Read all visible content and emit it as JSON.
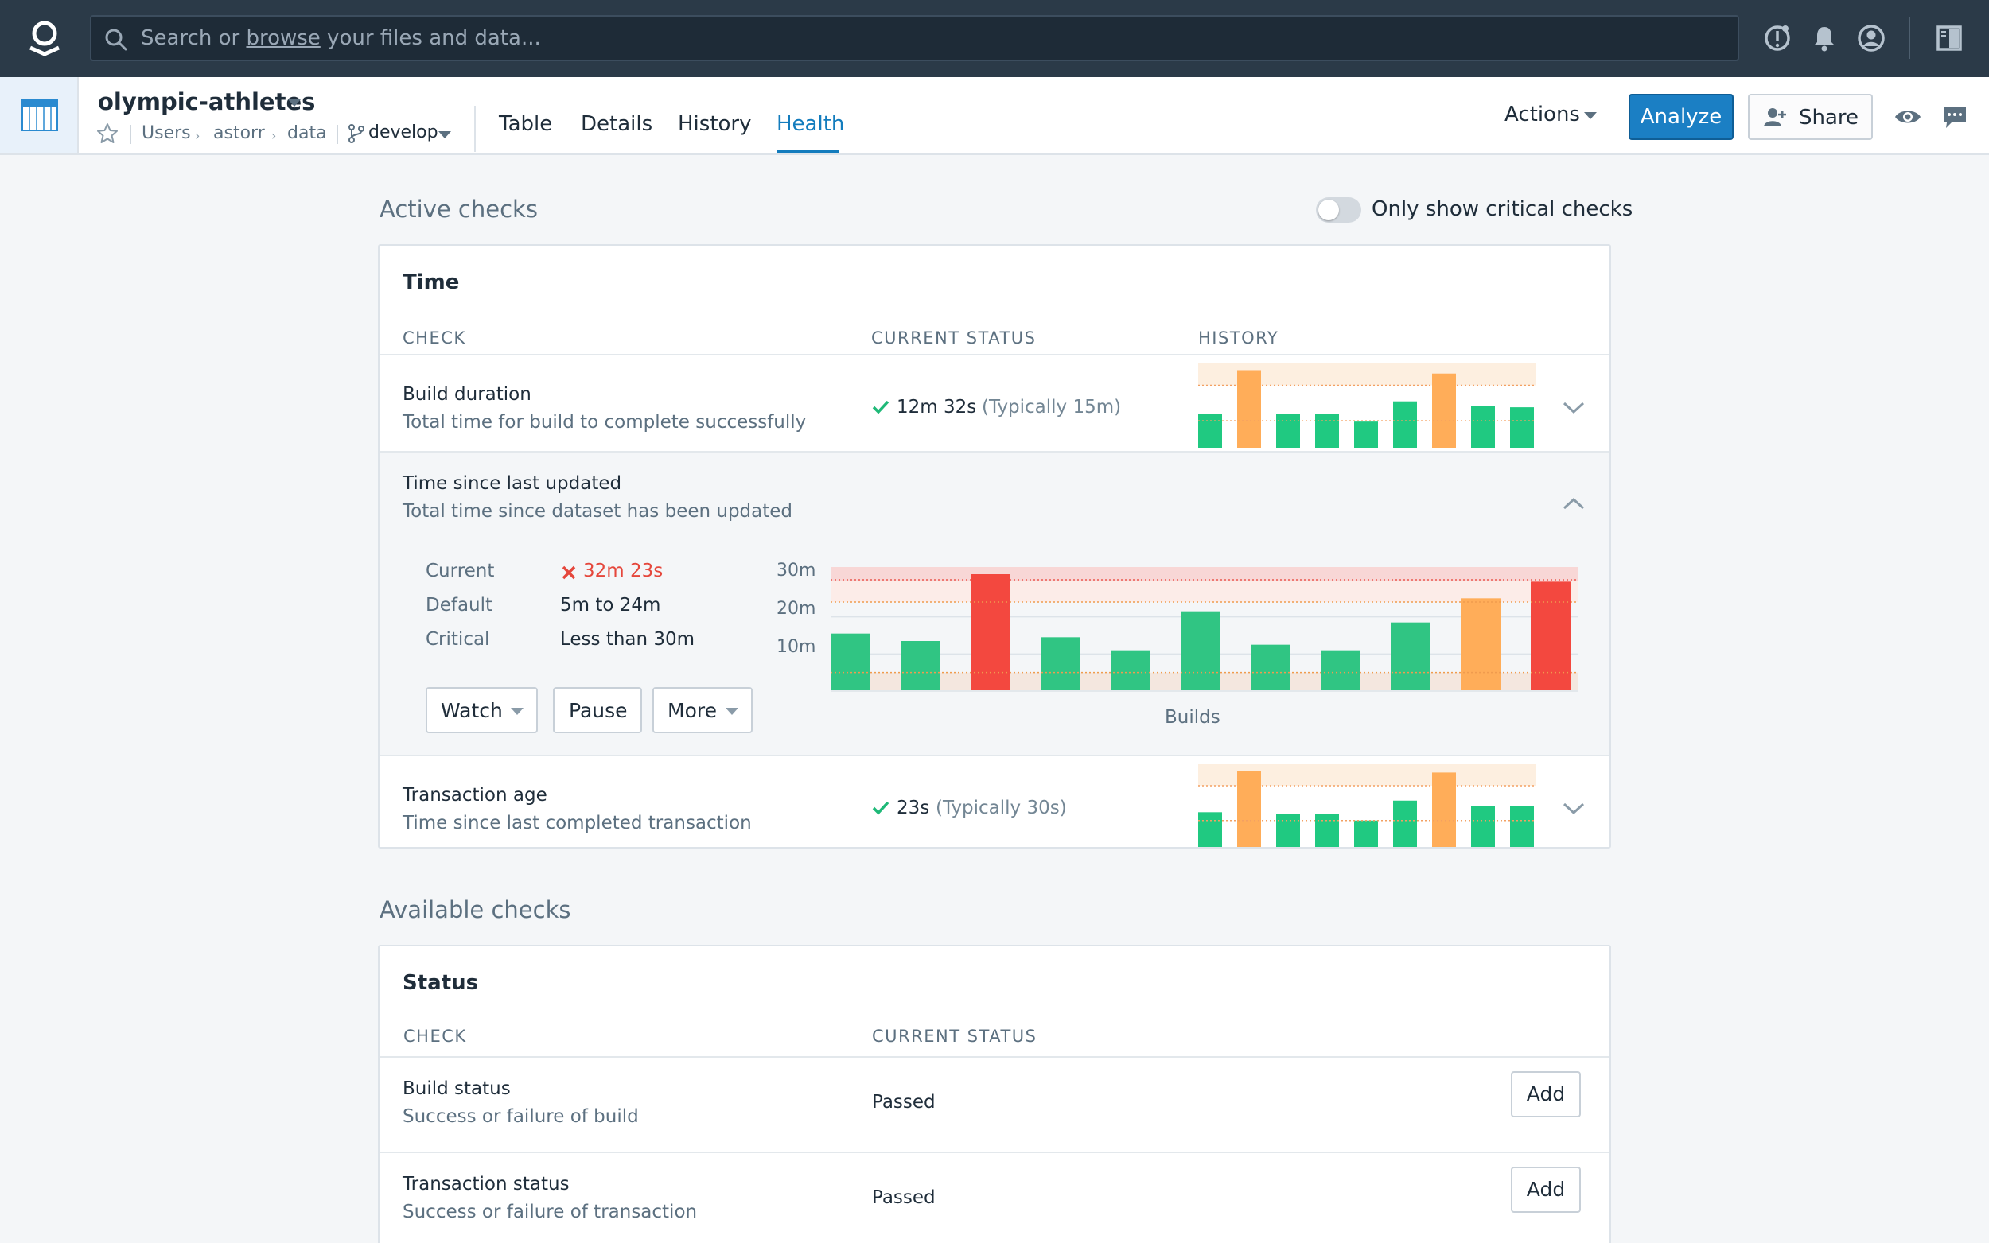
{
  "search": {
    "prefix": "Search or ",
    "link": "browse",
    "suffix": " your files and data..."
  },
  "dataset": {
    "title": "olympic-athletes",
    "breadcrumbs": [
      "Users",
      "astorr",
      "data"
    ],
    "branch": "develop"
  },
  "tabs": [
    {
      "label": "Table",
      "active": false
    },
    {
      "label": "Details",
      "active": false
    },
    {
      "label": "History",
      "active": false
    },
    {
      "label": "Health",
      "active": true
    }
  ],
  "header_actions": {
    "actions_label": "Actions",
    "analyze_label": "Analyze",
    "share_label": "Share"
  },
  "active_checks": {
    "title": "Active checks",
    "toggle_label": "Only show critical checks",
    "toggle_on": false,
    "card": {
      "title": "Time",
      "columns": [
        "CHECK",
        "CURRENT STATUS",
        "HISTORY"
      ],
      "rows": [
        {
          "title": "Build duration",
          "subtitle": "Total time for build to complete successfully",
          "status_value": "12m 32s",
          "status_typical": "(Typically 15m)",
          "status_ok": true,
          "history": [
            0.4,
            0.92,
            0.4,
            0.4,
            0.31,
            0.55,
            0.88,
            0.5,
            0.48
          ],
          "history_status": [
            "ok",
            "warn",
            "ok",
            "ok",
            "ok",
            "ok",
            "warn",
            "ok",
            "ok"
          ]
        },
        {
          "title": "Time since last updated",
          "subtitle": "Total time since dataset has been updated",
          "expanded": true,
          "details": [
            {
              "key": "Current",
              "value": "32m 23s",
              "bad": true
            },
            {
              "key": "Default",
              "value": "5m to 24m",
              "bad": false
            },
            {
              "key": "Critical",
              "value": "Less than 30m",
              "bad": false
            }
          ],
          "buttons": {
            "watch": "Watch",
            "pause": "Pause",
            "more": "More"
          }
        },
        {
          "title": "Transaction age",
          "subtitle": "Time since last completed transaction",
          "status_value": "23s",
          "status_typical": "(Typically 30s)",
          "status_ok": true,
          "history": [
            0.42,
            0.92,
            0.4,
            0.4,
            0.32,
            0.56,
            0.9,
            0.5,
            0.5
          ],
          "history_status": [
            "ok",
            "warn",
            "ok",
            "ok",
            "ok",
            "ok",
            "warn",
            "ok",
            "ok"
          ]
        }
      ]
    }
  },
  "available_checks": {
    "title": "Available checks",
    "card": {
      "title": "Status",
      "columns": [
        "CHECK",
        "CURRENT STATUS"
      ],
      "rows": [
        {
          "title": "Build status",
          "subtitle": "Success or failure of build",
          "status": "Passed",
          "button": "Add"
        },
        {
          "title": "Transaction status",
          "subtitle": "Success or failure of transaction",
          "status": "Passed",
          "button": "Add"
        }
      ]
    }
  },
  "chart_data": {
    "type": "bar",
    "xlabel": "Builds",
    "yticks": [
      "30m",
      "20m",
      "10m"
    ],
    "ylim": [
      0,
      30
    ],
    "default_range": [
      5,
      24
    ],
    "critical_threshold": 30,
    "values": [
      15.5,
      13.5,
      31.5,
      14.5,
      11,
      21.5,
      12.5,
      11,
      18.5,
      25,
      29.5
    ],
    "status": [
      "ok",
      "ok",
      "critical",
      "ok",
      "ok",
      "ok",
      "ok",
      "ok",
      "ok",
      "warn",
      "critical"
    ]
  },
  "colors": {
    "ok": "#20c981",
    "ok_detail": "#30c583",
    "warn": "#ffad59",
    "critical": "#f3483f",
    "accent": "#137cbd"
  }
}
